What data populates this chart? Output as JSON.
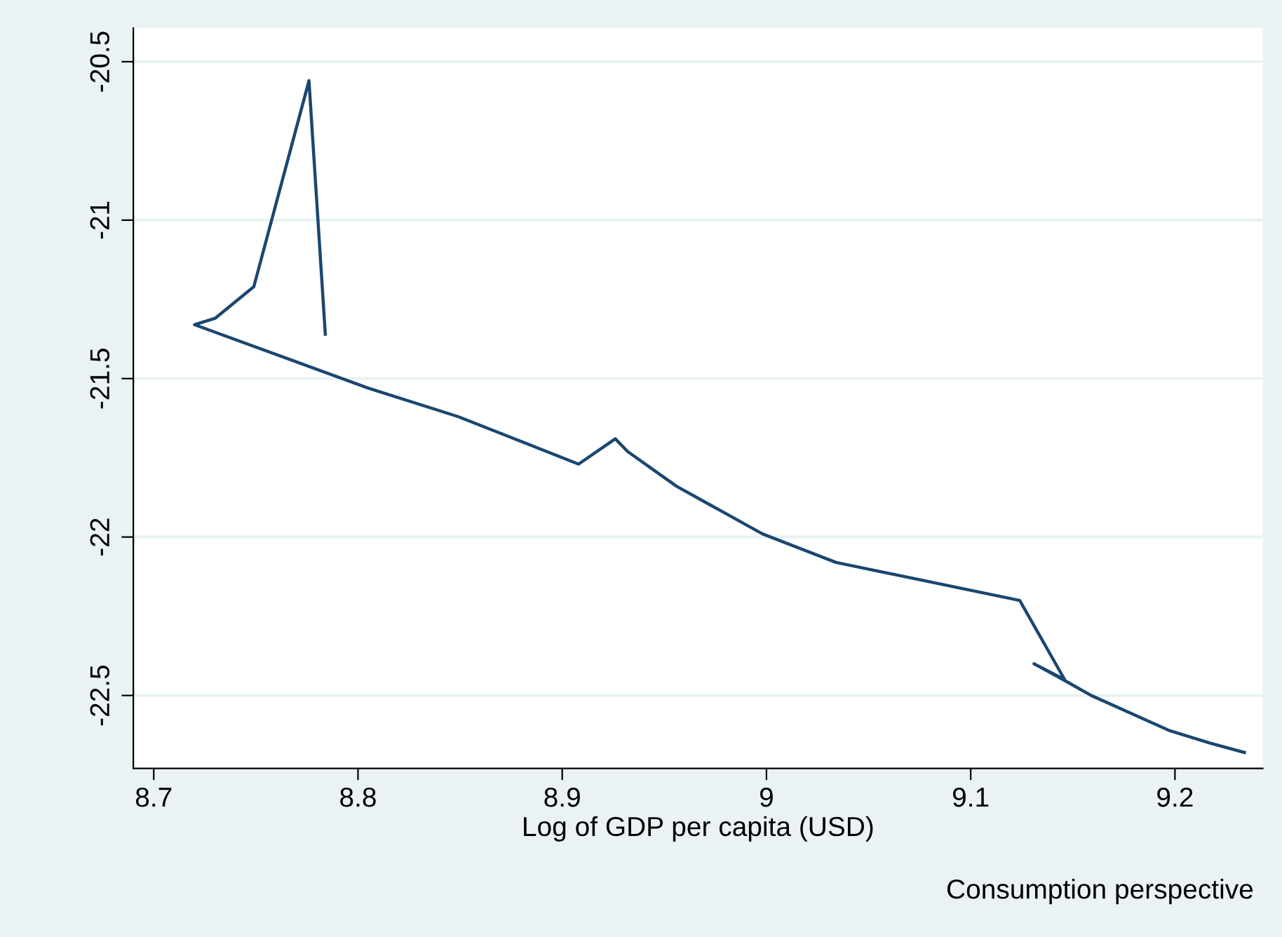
{
  "chart_data": {
    "type": "line",
    "xlabel": "Log of GDP per capita (USD)",
    "annotations": [
      "Consumption perspective"
    ],
    "x": [
      8.784,
      8.776,
      8.749,
      8.73,
      8.72,
      8.805,
      8.849,
      8.908,
      8.926,
      8.932,
      8.956,
      8.998,
      9.034,
      9.124,
      9.146,
      9.131,
      9.148,
      9.159,
      9.197,
      9.217,
      9.234
    ],
    "series": [
      {
        "color": "#1a476f",
        "values": [
          -21.36,
          -20.56,
          -21.21,
          -21.31,
          -21.33,
          -21.53,
          -21.62,
          -21.77,
          -21.69,
          -21.73,
          -21.84,
          -21.99,
          -22.08,
          -22.2,
          -22.45,
          -22.4,
          -22.46,
          -22.5,
          -22.61,
          -22.65,
          -22.68
        ]
      }
    ],
    "xlim": [
      8.69,
      9.243
    ],
    "ylim": [
      -22.73,
      -20.394
    ],
    "xticks": [
      8.7,
      8.8,
      8.9,
      {
        "value": 9,
        "label": "9"
      },
      9.1,
      9.2
    ],
    "yticks": [
      -20.5,
      -21,
      -21.5,
      -22,
      -22.5
    ],
    "grid": "y",
    "marker": "none",
    "line_style": "solid"
  }
}
